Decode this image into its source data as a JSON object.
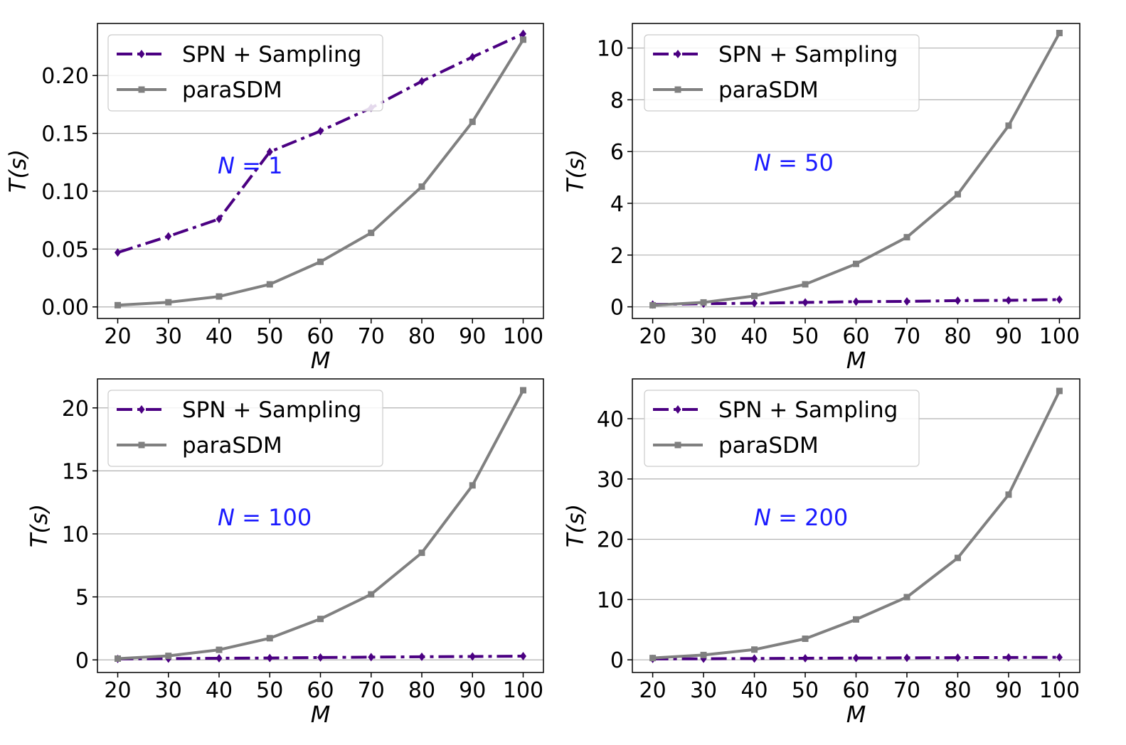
{
  "colors": {
    "spn": "#4b0082",
    "parasdm": "#808080",
    "annotation": "#1a1aff",
    "grid": "#b0b0b0",
    "axis": "#000000"
  },
  "chart_data": [
    {
      "type": "line",
      "annotation_prefix": "N",
      "annotation_value": "1",
      "xlabel": "M",
      "ylabel": "T(s)",
      "x": [
        20,
        30,
        40,
        50,
        60,
        70,
        80,
        90,
        100
      ],
      "ylim": [
        -0.01,
        0.245
      ],
      "yticks": [
        0.0,
        0.05,
        0.1,
        0.15,
        0.2
      ],
      "ytick_labels": [
        "0.00",
        "0.05",
        "0.10",
        "0.15",
        "0.20"
      ],
      "grid": "y",
      "legend_position": "top-left",
      "series": [
        {
          "name": "SPN + Sampling",
          "style": "dash-dot",
          "marker": "diamond",
          "color_key": "spn",
          "values": [
            0.047,
            0.061,
            0.076,
            0.134,
            0.152,
            0.172,
            0.195,
            0.216,
            0.236
          ]
        },
        {
          "name": "paraSDM",
          "style": "solid",
          "marker": "square",
          "color_key": "parasdm",
          "values": [
            0.0015,
            0.004,
            0.009,
            0.0195,
            0.039,
            0.064,
            0.104,
            0.16,
            0.231
          ]
        }
      ]
    },
    {
      "type": "line",
      "annotation_prefix": "N",
      "annotation_value": "50",
      "xlabel": "M",
      "ylabel": "T(s)",
      "x": [
        20,
        30,
        40,
        50,
        60,
        70,
        80,
        90,
        100
      ],
      "ylim": [
        -0.45,
        10.95
      ],
      "yticks": [
        0,
        2,
        4,
        6,
        8,
        10
      ],
      "ytick_labels": [
        "0",
        "2",
        "4",
        "6",
        "8",
        "10"
      ],
      "grid": "y",
      "legend_position": "top-left",
      "series": [
        {
          "name": "SPN + Sampling",
          "style": "dash-dot",
          "marker": "diamond",
          "color_key": "spn",
          "values": [
            0.09,
            0.12,
            0.14,
            0.17,
            0.2,
            0.21,
            0.24,
            0.25,
            0.28
          ]
        },
        {
          "name": "paraSDM",
          "style": "solid",
          "marker": "square",
          "color_key": "parasdm",
          "values": [
            0.06,
            0.17,
            0.42,
            0.87,
            1.66,
            2.69,
            4.35,
            7.0,
            10.58
          ]
        }
      ]
    },
    {
      "type": "line",
      "annotation_prefix": "N",
      "annotation_value": "100",
      "xlabel": "M",
      "ylabel": "T(s)",
      "x": [
        20,
        30,
        40,
        50,
        60,
        70,
        80,
        90,
        100
      ],
      "ylim": [
        -1.0,
        22.3
      ],
      "yticks": [
        0,
        5,
        10,
        15,
        20
      ],
      "ytick_labels": [
        "0",
        "5",
        "10",
        "15",
        "20"
      ],
      "grid": "y",
      "legend_position": "top-left",
      "series": [
        {
          "name": "SPN + Sampling",
          "style": "dash-dot",
          "marker": "diamond",
          "color_key": "spn",
          "values": [
            0.08,
            0.1,
            0.13,
            0.15,
            0.19,
            0.22,
            0.25,
            0.27,
            0.3
          ]
        },
        {
          "name": "paraSDM",
          "style": "solid",
          "marker": "square",
          "color_key": "parasdm",
          "values": [
            0.1,
            0.32,
            0.8,
            1.72,
            3.25,
            5.2,
            8.5,
            13.85,
            21.4
          ]
        }
      ]
    },
    {
      "type": "line",
      "annotation_prefix": "N",
      "annotation_value": "200",
      "xlabel": "M",
      "ylabel": "T(s)",
      "x": [
        20,
        30,
        40,
        50,
        60,
        70,
        80,
        90,
        100
      ],
      "ylim": [
        -2.1,
        46.6
      ],
      "yticks": [
        0,
        10,
        20,
        30,
        40
      ],
      "ytick_labels": [
        "0",
        "10",
        "20",
        "30",
        "40"
      ],
      "grid": "y",
      "legend_position": "top-left",
      "series": [
        {
          "name": "SPN + Sampling",
          "style": "dash-dot",
          "marker": "diamond",
          "color_key": "spn",
          "values": [
            0.15,
            0.18,
            0.22,
            0.26,
            0.3,
            0.33,
            0.36,
            0.39,
            0.42
          ]
        },
        {
          "name": "paraSDM",
          "style": "solid",
          "marker": "square",
          "color_key": "parasdm",
          "values": [
            0.3,
            0.8,
            1.7,
            3.5,
            6.7,
            10.4,
            16.9,
            27.4,
            44.6
          ]
        }
      ]
    }
  ]
}
